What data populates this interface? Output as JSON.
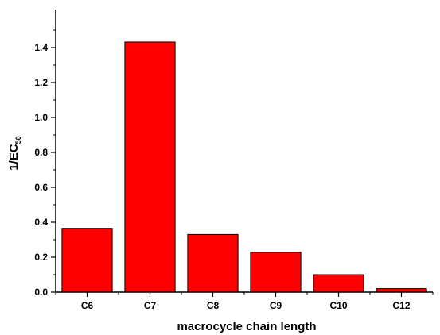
{
  "chart_data": {
    "type": "bar",
    "categories": [
      "C6",
      "C7",
      "C8",
      "C9",
      "C10",
      "C12"
    ],
    "values": [
      0.365,
      1.432,
      0.33,
      0.228,
      0.1,
      0.02
    ],
    "xlabel": "macrocycle chain length",
    "ylabel": "1/EC",
    "ylabel_subscript": "50",
    "ylim": [
      0,
      1.6
    ],
    "yticks": [
      "0.0",
      "0.2",
      "0.4",
      "0.6",
      "0.8",
      "1.0",
      "1.2",
      "1.4"
    ],
    "grid": false,
    "legend": "none",
    "bar_color": "#ff0000",
    "bar_edge_color": "#000000"
  }
}
